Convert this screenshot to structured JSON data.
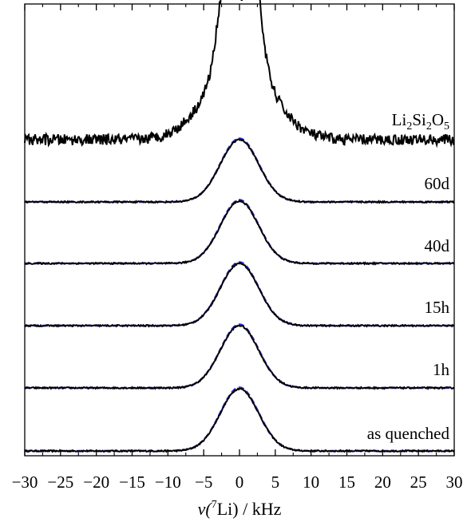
{
  "chart_data": {
    "type": "line",
    "title": "",
    "xlabel": {
      "prefix": "ν(",
      "sup": "7",
      "suffix": "Li) / kHz"
    },
    "ylabel": "",
    "xlim": [
      -30,
      30
    ],
    "x_ticks": [
      -30,
      -25,
      -20,
      -15,
      -10,
      -5,
      0,
      5,
      10,
      15,
      20,
      25,
      30
    ],
    "x_tick_labels": [
      "−30",
      "−25",
      "−20",
      "−15",
      "−10",
      "−5",
      "0",
      "5",
      "10",
      "15",
      "20",
      "25",
      "30"
    ],
    "grid": false,
    "legend": "none",
    "colors": {
      "experimental": "#000000",
      "fit": "#2a2ad8"
    },
    "series_kinds": {
      "experimental": "solid",
      "fit": "dashed"
    },
    "spectra": [
      {
        "label": "as quenched",
        "label_parts": [
          {
            "t": "as quenched"
          }
        ],
        "offset": 0.0,
        "center": 0.0,
        "fwhm": 6.3,
        "height": 1.0,
        "noise": 0.012
      },
      {
        "label": "1h",
        "label_parts": [
          {
            "t": "1h"
          }
        ],
        "offset": 1.0,
        "center": 0.0,
        "fwhm": 6.3,
        "height": 1.0,
        "noise": 0.012
      },
      {
        "label": "15h",
        "label_parts": [
          {
            "t": "15h"
          }
        ],
        "offset": 2.0,
        "center": 0.0,
        "fwhm": 6.3,
        "height": 1.0,
        "noise": 0.012
      },
      {
        "label": "40d",
        "label_parts": [
          {
            "t": "40d"
          }
        ],
        "offset": 3.0,
        "center": 0.0,
        "fwhm": 6.3,
        "height": 1.0,
        "noise": 0.012
      },
      {
        "label": "60d",
        "label_parts": [
          {
            "t": "60d"
          }
        ],
        "offset": 4.0,
        "center": 0.0,
        "fwhm": 6.3,
        "height": 1.0,
        "noise": 0.012
      },
      {
        "label": "Li2Si2O5",
        "label_parts": [
          {
            "t": "Li"
          },
          {
            "t": "2",
            "sub": true
          },
          {
            "t": "Si"
          },
          {
            "t": "2",
            "sub": true
          },
          {
            "t": "O"
          },
          {
            "t": "5",
            "sub": true
          }
        ],
        "offset": 5.0,
        "doublet": true,
        "peaks": [
          -2.3,
          2.3
        ],
        "height": 1.95,
        "noise": 0.03
      }
    ]
  }
}
